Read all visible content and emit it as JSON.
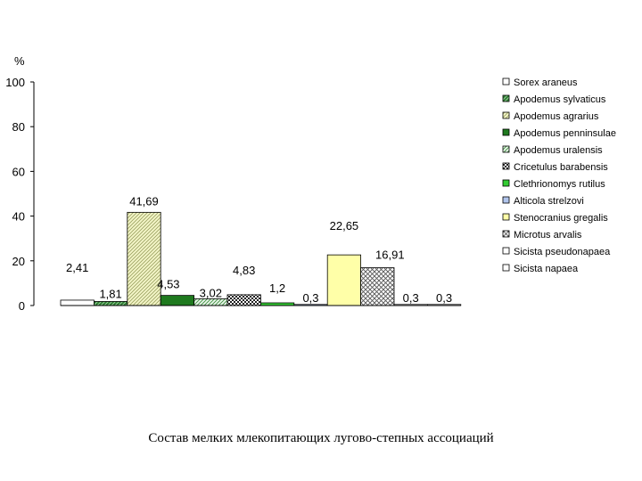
{
  "caption": "Состав мелких млекопитающих лугово-степных ассоциаций",
  "chart_data": {
    "type": "bar",
    "ylabel": "%",
    "ylim": [
      0,
      100
    ],
    "yticks": [
      "0",
      "20",
      "40",
      "60",
      "80",
      "100"
    ],
    "grid": false,
    "legend_position": "right",
    "series": [
      {
        "name": "Sorex araneus",
        "value": 2.41,
        "label": "2,41",
        "fill": "#ffffff",
        "pattern": "none"
      },
      {
        "name": "Apodemus sylvaticus",
        "value": 1.81,
        "label": "1,81",
        "fill": "#2e7d32",
        "pattern": "diag-dark"
      },
      {
        "name": "Apodemus agrarius",
        "value": 41.69,
        "label": "41,69",
        "fill": "#eef0b0",
        "pattern": "diag-light"
      },
      {
        "name": "Apodemus penninsulae",
        "value": 4.53,
        "label": "4,53",
        "fill": "#1f7a1f",
        "pattern": "none"
      },
      {
        "name": "Apodemus uralensis",
        "value": 3.02,
        "label": "3,02",
        "fill": "#c8e6c9",
        "pattern": "diag-green"
      },
      {
        "name": "Cricetulus barabensis",
        "value": 4.83,
        "label": "4,83",
        "fill": "#303030",
        "pattern": "check"
      },
      {
        "name": "Clethrionomys rutilus",
        "value": 1.2,
        "label": "1,2",
        "fill": "#33cc33",
        "pattern": "none"
      },
      {
        "name": "Alticola strelzovi",
        "value": 0.3,
        "label": "0,3",
        "fill": "#b0c4ec",
        "pattern": "none"
      },
      {
        "name": "Stenocranius gregalis",
        "value": 22.65,
        "label": "22,65",
        "fill": "#ffffa8",
        "pattern": "none"
      },
      {
        "name": "Microtus arvalis",
        "value": 16.91,
        "label": "16,91",
        "fill": "#d8d8d8",
        "pattern": "cross"
      },
      {
        "name": "Sicista pseudonapaea",
        "value": 0.3,
        "label": "0,3",
        "fill": "#ffffff",
        "pattern": "none"
      },
      {
        "name": "Sicista napaea",
        "value": 0.3,
        "label": "0,3",
        "fill": "#ffffff",
        "pattern": "none"
      }
    ]
  }
}
